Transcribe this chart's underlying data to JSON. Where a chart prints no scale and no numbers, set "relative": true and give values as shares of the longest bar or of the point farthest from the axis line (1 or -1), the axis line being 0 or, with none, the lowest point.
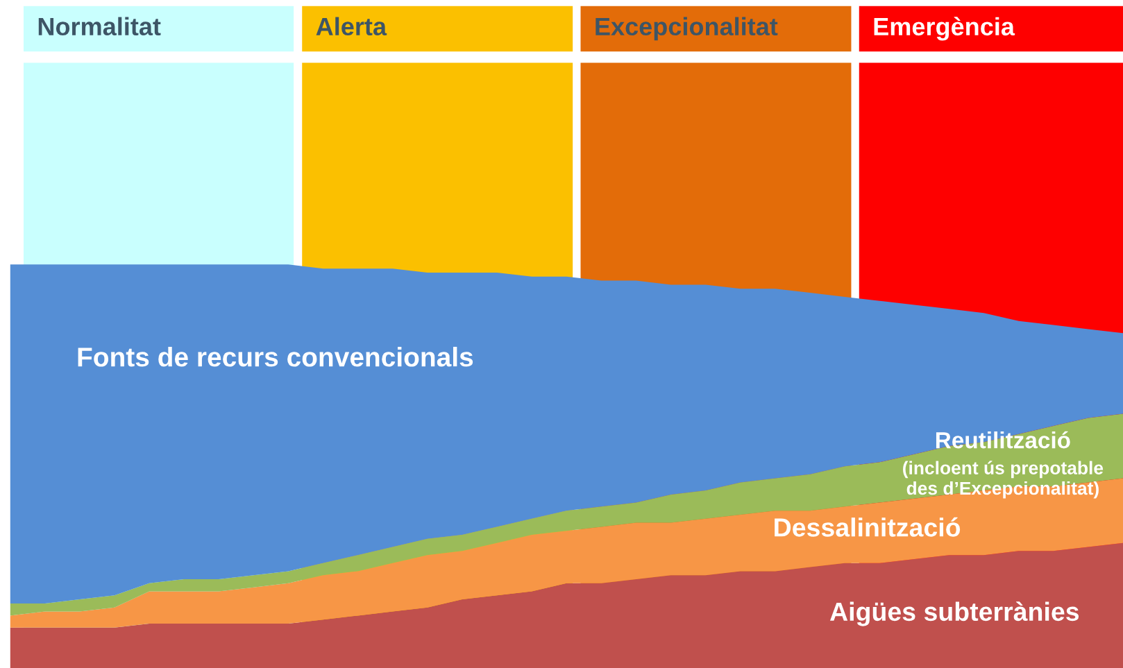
{
  "chart_data": {
    "type": "area",
    "stacked": true,
    "relative": true,
    "categories": [
      null,
      null,
      null,
      null,
      null,
      null,
      null,
      null,
      null,
      null,
      null,
      null,
      null,
      null,
      null,
      null,
      null,
      null,
      null,
      null,
      null,
      null,
      null,
      null,
      null,
      null,
      null,
      null,
      null,
      null,
      null,
      null,
      null
    ],
    "series": [
      {
        "name": "Aigües subterrànies",
        "color": "#c0504d",
        "values": [
          0.1,
          0.1,
          0.1,
          0.1,
          0.11,
          0.11,
          0.11,
          0.11,
          0.11,
          0.12,
          0.13,
          0.14,
          0.15,
          0.17,
          0.18,
          0.19,
          0.21,
          0.21,
          0.22,
          0.23,
          0.23,
          0.24,
          0.24,
          0.25,
          0.26,
          0.26,
          0.27,
          0.28,
          0.28,
          0.29,
          0.29,
          0.3,
          0.31
        ]
      },
      {
        "name": "Dessalinització",
        "color": "#f79646",
        "values": [
          0.03,
          0.04,
          0.04,
          0.05,
          0.08,
          0.08,
          0.08,
          0.09,
          0.1,
          0.11,
          0.11,
          0.12,
          0.13,
          0.12,
          0.13,
          0.14,
          0.13,
          0.14,
          0.14,
          0.13,
          0.14,
          0.14,
          0.15,
          0.14,
          0.14,
          0.15,
          0.15,
          0.15,
          0.16,
          0.16,
          0.16,
          0.16,
          0.16
        ]
      },
      {
        "name": "Reutilització",
        "color": "#9bbb59",
        "values": [
          0.03,
          0.02,
          0.03,
          0.03,
          0.02,
          0.03,
          0.03,
          0.03,
          0.03,
          0.03,
          0.04,
          0.04,
          0.04,
          0.04,
          0.04,
          0.04,
          0.05,
          0.05,
          0.05,
          0.07,
          0.07,
          0.08,
          0.08,
          0.09,
          0.1,
          0.1,
          0.11,
          0.12,
          0.12,
          0.13,
          0.15,
          0.16,
          0.16
        ]
      },
      {
        "name": "Fonts de recurs convencionals",
        "color": "#558ed5",
        "values": [
          0.84,
          0.84,
          0.83,
          0.82,
          0.79,
          0.78,
          0.78,
          0.77,
          0.76,
          0.73,
          0.71,
          0.69,
          0.66,
          0.65,
          0.63,
          0.6,
          0.58,
          0.56,
          0.55,
          0.52,
          0.51,
          0.48,
          0.47,
          0.45,
          0.42,
          0.4,
          0.37,
          0.34,
          0.32,
          0.28,
          0.25,
          0.22,
          0.2
        ]
      }
    ],
    "annotations": [
      "Normalitat",
      "Alerta",
      "Excepcionalitat",
      "Emergència",
      "(incloent ús prepotable\ndes d’Excepcionalitat)"
    ],
    "legend": false
  }
}
